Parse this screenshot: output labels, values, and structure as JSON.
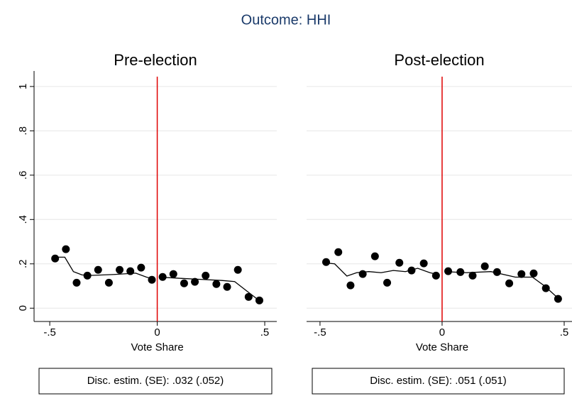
{
  "title": "Outcome: HHI",
  "chart_data": [
    {
      "type": "scatter",
      "title": "Pre-election",
      "xlabel": "Vote Share",
      "annotation": "Disc. estim. (SE): .032 (.052)",
      "x": [
        -0.475,
        -0.425,
        -0.375,
        -0.325,
        -0.275,
        -0.225,
        -0.175,
        -0.125,
        -0.075,
        -0.025,
        0.025,
        0.075,
        0.125,
        0.175,
        0.225,
        0.275,
        0.325,
        0.375,
        0.425,
        0.475
      ],
      "values": [
        0.224,
        0.266,
        0.115,
        0.147,
        0.173,
        0.115,
        0.173,
        0.167,
        0.183,
        0.128,
        0.141,
        0.154,
        0.112,
        0.119,
        0.147,
        0.109,
        0.096,
        0.173,
        0.051,
        0.035
      ],
      "fit": {
        "x": [
          -0.49,
          -0.43,
          -0.39,
          -0.35,
          -0.3,
          -0.2,
          -0.1,
          -0.05,
          -0.01,
          null,
          0.01,
          0.1,
          0.2,
          0.3,
          0.36,
          0.42,
          0.48
        ],
        "values": [
          0.23,
          0.23,
          0.165,
          0.15,
          0.148,
          0.152,
          0.158,
          0.14,
          0.13,
          null,
          0.14,
          0.135,
          0.13,
          0.125,
          0.12,
          0.075,
          0.03
        ]
      },
      "xline": 0,
      "xline_color": "#e00000",
      "color": "#000000",
      "xlim": [
        -0.573,
        0.556
      ],
      "ylim": [
        -0.06,
        1.07
      ],
      "xticks": [
        {
          "value": -0.5,
          "label": "-.5"
        },
        0,
        {
          "value": 0.5,
          "label": ".5"
        }
      ],
      "yticks": [
        0,
        {
          "value": 0.2,
          "label": ".2"
        },
        {
          "value": 0.4,
          "label": ".4"
        },
        {
          "value": 0.6,
          "label": ".6"
        },
        {
          "value": 0.8,
          "label": ".8"
        },
        1
      ],
      "grid": true,
      "y_axis_visible": true
    },
    {
      "type": "scatter",
      "title": "Post-election",
      "xlabel": "Vote Share",
      "annotation": "Disc. estim. (SE): .051 (.051)",
      "x": [
        -0.475,
        -0.425,
        -0.375,
        -0.325,
        -0.275,
        -0.225,
        -0.175,
        -0.125,
        -0.075,
        -0.025,
        0.025,
        0.075,
        0.125,
        0.175,
        0.225,
        0.275,
        0.325,
        0.375,
        0.425,
        0.475
      ],
      "values": [
        0.208,
        0.253,
        0.103,
        0.154,
        0.234,
        0.115,
        0.205,
        0.17,
        0.202,
        0.147,
        0.167,
        0.163,
        0.147,
        0.189,
        0.163,
        0.112,
        0.154,
        0.157,
        0.09,
        0.042
      ],
      "fit": {
        "x": [
          -0.485,
          -0.44,
          -0.39,
          -0.35,
          -0.3,
          -0.25,
          -0.2,
          -0.15,
          -0.1,
          -0.05,
          -0.01,
          null,
          0.01,
          0.1,
          0.2,
          0.3,
          0.37,
          0.42,
          0.48
        ],
        "values": [
          0.205,
          0.2,
          0.145,
          0.16,
          0.165,
          0.16,
          0.17,
          0.165,
          0.18,
          0.16,
          0.15,
          null,
          0.165,
          0.16,
          0.165,
          0.14,
          0.14,
          0.1,
          0.04
        ]
      },
      "xline": 0,
      "xline_color": "#e00000",
      "color": "#000000",
      "xlim": [
        -0.555,
        0.532
      ],
      "ylim": [
        -0.06,
        1.07
      ],
      "xticks": [
        {
          "value": -0.5,
          "label": "-.5"
        },
        0,
        {
          "value": 0.5,
          "label": ".5"
        }
      ],
      "yticks": [
        0,
        {
          "value": 0.2,
          "label": ".2"
        },
        {
          "value": 0.4,
          "label": ".4"
        },
        {
          "value": 0.6,
          "label": ".6"
        },
        {
          "value": 0.8,
          "label": ".8"
        },
        1
      ],
      "grid": true,
      "y_axis_visible": false
    }
  ]
}
